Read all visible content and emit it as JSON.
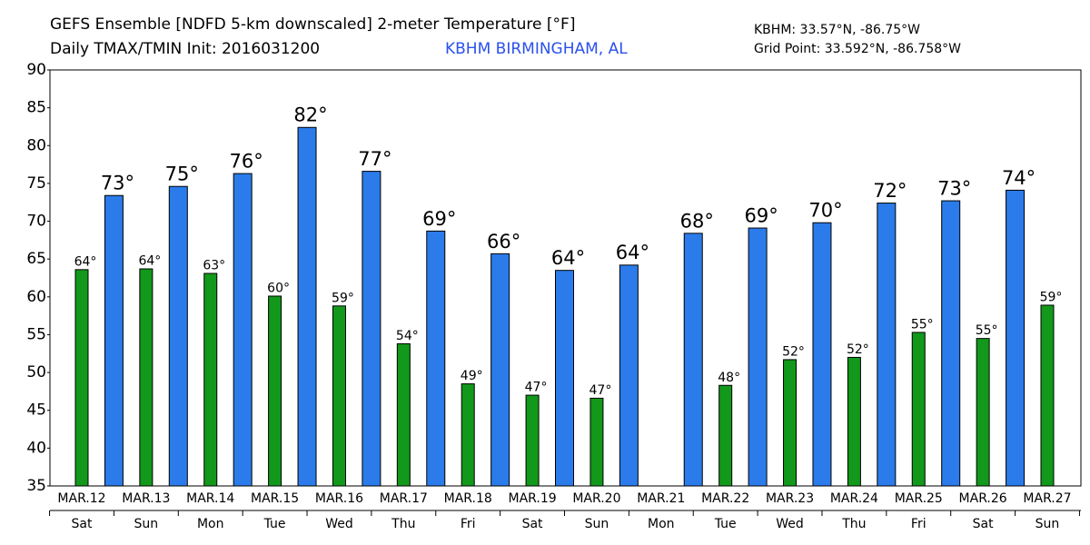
{
  "chart_data": {
    "type": "bar",
    "title": "GEFS Ensemble [NDFD 5-km downscaled] 2-meter Temperature [°F]",
    "subtitle": "Daily TMAX/TMIN Init: 2016031200",
    "station": "KBHM BIRMINGHAM, AL",
    "location": "KBHM: 33.57°N, -86.75°W",
    "grid_point": "Grid Point: 33.592°N, -86.758°W",
    "categories": [
      "MAR.12",
      "MAR.13",
      "MAR.14",
      "MAR.15",
      "MAR.16",
      "MAR.17",
      "MAR.18",
      "MAR.19",
      "MAR.20",
      "MAR.21",
      "MAR.22",
      "MAR.23",
      "MAR.24",
      "MAR.25",
      "MAR.26",
      "MAR.27"
    ],
    "weekdays": [
      "Sat",
      "Sun",
      "Mon",
      "Tue",
      "Wed",
      "Thu",
      "Fri",
      "Sat",
      "Sun",
      "Mon",
      "Tue",
      "Wed",
      "Thu",
      "Fri",
      "Sat",
      "Sun"
    ],
    "series": [
      {
        "color": "#2b7bea",
        "values": [
          73.4,
          74.6,
          76.3,
          82.4,
          76.6,
          68.7,
          65.7,
          63.5,
          64.2,
          68.4,
          69.1,
          69.8,
          72.4,
          72.7,
          74.1,
          null
        ],
        "value_labels": [
          "73°",
          "75°",
          "76°",
          "82°",
          "77°",
          "69°",
          "66°",
          "64°",
          "64°",
          "68°",
          "69°",
          "70°",
          "72°",
          "73°",
          "74°",
          null
        ]
      },
      {
        "color": "#12981a",
        "values": [
          63.6,
          63.7,
          63.1,
          60.1,
          58.8,
          53.8,
          48.5,
          47.0,
          46.6,
          null,
          48.3,
          51.7,
          52.0,
          55.3,
          54.5,
          58.9
        ],
        "value_labels": [
          "64°",
          "64°",
          "63°",
          "60°",
          "59°",
          "54°",
          "49°",
          "47°",
          "47°",
          null,
          "48°",
          "52°",
          "52°",
          "55°",
          "55°",
          "59°"
        ]
      }
    ],
    "ylim": [
      35,
      90
    ],
    "yticks": [
      35,
      40,
      45,
      50,
      55,
      60,
      65,
      70,
      75,
      80,
      85,
      90
    ]
  }
}
